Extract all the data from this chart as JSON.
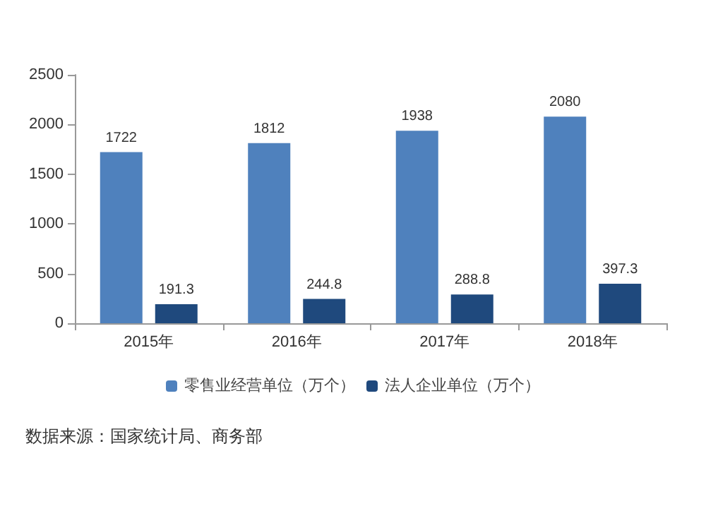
{
  "chart_data": {
    "type": "bar",
    "categories": [
      "2015年",
      "2016年",
      "2017年",
      "2018年"
    ],
    "series": [
      {
        "name": "零售业经营单位（万个）",
        "color": "#4f81bd",
        "values": [
          1722,
          1812,
          1938,
          2080
        ]
      },
      {
        "name": "法人企业单位（万个）",
        "color": "#1f497d",
        "values": [
          191.3,
          244.8,
          288.8,
          397.3
        ]
      }
    ],
    "ylim": [
      0,
      2500
    ],
    "yticks": [
      0,
      500,
      1000,
      1500,
      2000,
      2500
    ],
    "data_labels": true,
    "grid": false,
    "legend": "bottom",
    "annotations": [
      "数据来源：国家统计局、商务部"
    ]
  }
}
